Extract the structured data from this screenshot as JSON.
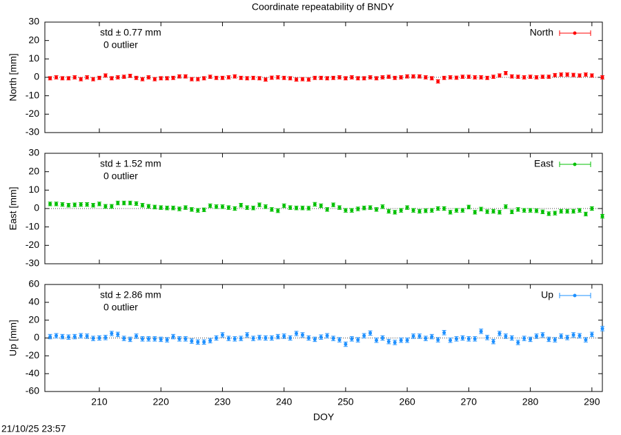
{
  "title": "Coordinate repeatability of BNDY",
  "timestamp": "21/10/25 23:57",
  "chart_data": [
    {
      "type": "errorbar",
      "ylabel": "North [mm]",
      "annotations": [
        "std ± 0.77 mm",
        "0 outlier"
      ],
      "legend": "top-right",
      "xlim": [
        201.15,
        291.7
      ],
      "ylim": [
        -30,
        30
      ],
      "yticks": [
        -30,
        -20,
        -10,
        0,
        10,
        20,
        30
      ],
      "x": [
        202,
        203,
        204,
        205,
        206,
        207,
        208,
        209,
        210,
        211,
        212,
        213,
        214,
        215,
        216,
        217,
        218,
        219,
        220,
        221,
        222,
        223,
        224,
        225,
        226,
        227,
        228,
        229,
        230,
        231,
        232,
        233,
        234,
        235,
        236,
        237,
        238,
        239,
        240,
        241,
        242,
        243,
        244,
        245,
        246,
        247,
        248,
        249,
        250,
        251,
        252,
        253,
        254,
        255,
        256,
        257,
        258,
        259,
        260,
        261,
        262,
        263,
        264,
        265,
        266,
        267,
        268,
        269,
        270,
        271,
        272,
        273,
        274,
        275,
        276,
        277,
        278,
        279,
        280,
        281,
        282,
        283,
        284,
        285,
        286,
        287,
        288,
        289,
        290,
        291.7
      ],
      "series": [
        {
          "name": "North",
          "color": "#ff0000",
          "error": 0.9,
          "values": [
            -0.5,
            0,
            -0.5,
            -0.5,
            0,
            -1,
            0,
            -1,
            -0.3,
            1,
            -0.5,
            0,
            0.3,
            0.8,
            -0.3,
            -1,
            0,
            -1,
            -0.5,
            -0.5,
            -0.3,
            0.5,
            0.5,
            -1,
            -1,
            -0.5,
            0.3,
            -0.3,
            -0.3,
            0,
            0.5,
            -0.3,
            -0.5,
            -0.3,
            -0.5,
            -1.2,
            -0.2,
            0,
            -0.3,
            -0.5,
            -1.2,
            -1,
            -1.2,
            -0.3,
            -0.3,
            -0.5,
            -0.3,
            0,
            -0.5,
            0,
            -0.5,
            -0.5,
            0,
            -0.5,
            0,
            0.3,
            -0.3,
            0,
            0.5,
            0.5,
            0.5,
            0,
            -0.5,
            -2.2,
            -0.3,
            0,
            -0.2,
            0.3,
            0.3,
            0,
            0,
            -0.3,
            0.3,
            1,
            2.3,
            0.5,
            0.3,
            0,
            0.3,
            0,
            0.3,
            0.3,
            1.2,
            1.5,
            1.5,
            1.3,
            1,
            1.5,
            1,
            0
          ]
        }
      ]
    },
    {
      "type": "errorbar",
      "ylabel": "East [mm]",
      "annotations": [
        "std ± 1.52 mm",
        "0 outlier"
      ],
      "legend": "top-right",
      "xlim": [
        201.15,
        291.7
      ],
      "ylim": [
        -30,
        30
      ],
      "yticks": [
        -30,
        -20,
        -10,
        0,
        10,
        20,
        30
      ],
      "x": [
        202,
        203,
        204,
        205,
        206,
        207,
        208,
        209,
        210,
        211,
        212,
        213,
        214,
        215,
        216,
        217,
        218,
        219,
        220,
        221,
        222,
        223,
        224,
        225,
        226,
        227,
        228,
        229,
        230,
        231,
        232,
        233,
        234,
        235,
        236,
        237,
        238,
        239,
        240,
        241,
        242,
        243,
        244,
        245,
        246,
        247,
        248,
        249,
        250,
        251,
        252,
        253,
        254,
        255,
        256,
        257,
        258,
        259,
        260,
        261,
        262,
        263,
        264,
        265,
        266,
        267,
        268,
        269,
        270,
        271,
        272,
        273,
        274,
        275,
        276,
        277,
        278,
        279,
        280,
        281,
        282,
        283,
        284,
        285,
        286,
        287,
        288,
        289,
        290,
        291.7
      ],
      "series": [
        {
          "name": "East",
          "color": "#00c000",
          "error": 1.0,
          "values": [
            2.5,
            2.5,
            2.2,
            1.8,
            2,
            2.2,
            2.2,
            1.8,
            2.5,
            1.2,
            1.2,
            3,
            3,
            3,
            2.7,
            1.8,
            1.2,
            0.8,
            0.5,
            0.3,
            0.3,
            -0.2,
            0.5,
            -0.5,
            -1,
            -0.7,
            1.5,
            1,
            1,
            0.5,
            0,
            1.8,
            0.5,
            0.3,
            2,
            1,
            -0.5,
            -1.2,
            1.5,
            0.5,
            0.3,
            0.3,
            0.2,
            2.3,
            1.5,
            -0.5,
            2,
            0.5,
            -1,
            -1,
            -0.2,
            0.3,
            0.5,
            -0.5,
            1,
            -1.5,
            -2,
            -1,
            0.5,
            -1,
            -1.5,
            -1.2,
            -1,
            0,
            0,
            -2,
            -1,
            -1,
            0.8,
            -2,
            -0.3,
            -1.7,
            -1.5,
            -2,
            1,
            -1.8,
            -0.5,
            -1,
            -1,
            -1.2,
            -1.8,
            -2.8,
            -2.5,
            -1.5,
            -1.5,
            -1.5,
            -1,
            -3,
            0,
            -4.2
          ]
        }
      ]
    },
    {
      "type": "errorbar",
      "ylabel": "Up [mm]",
      "xlabel": "DOY",
      "annotations": [
        "std ± 2.86 mm",
        "0 outlier"
      ],
      "legend": "top-right",
      "xlim": [
        201.15,
        291.7
      ],
      "ylim": [
        -60,
        60
      ],
      "yticks": [
        -60,
        -40,
        -20,
        0,
        20,
        40,
        60
      ],
      "xticks": [
        210,
        220,
        230,
        240,
        250,
        260,
        270,
        280,
        290
      ],
      "x": [
        202,
        203,
        204,
        205,
        206,
        207,
        208,
        209,
        210,
        211,
        212,
        213,
        214,
        215,
        216,
        217,
        218,
        219,
        220,
        221,
        222,
        223,
        224,
        225,
        226,
        227,
        228,
        229,
        230,
        231,
        232,
        233,
        234,
        235,
        236,
        237,
        238,
        239,
        240,
        241,
        242,
        243,
        244,
        245,
        246,
        247,
        248,
        249,
        250,
        251,
        252,
        253,
        254,
        255,
        256,
        257,
        258,
        259,
        260,
        261,
        262,
        263,
        264,
        265,
        266,
        267,
        268,
        269,
        270,
        271,
        272,
        273,
        274,
        275,
        276,
        277,
        278,
        279,
        280,
        281,
        282,
        283,
        284,
        285,
        286,
        287,
        288,
        289,
        290,
        291.7
      ],
      "series": [
        {
          "name": "Up",
          "color": "#1e90ff",
          "error": 2.5,
          "values": [
            1.5,
            2.5,
            1.5,
            1,
            1.5,
            2.5,
            2,
            -0.5,
            0,
            0.5,
            5,
            4,
            -0.5,
            -1.5,
            2,
            -1,
            -1,
            -1,
            -1.5,
            -2,
            1.5,
            -1,
            -1,
            -3.5,
            -4.5,
            -4.5,
            -3,
            0,
            3.5,
            -0.5,
            -1,
            -0.5,
            3.5,
            -0.5,
            0.5,
            0,
            0,
            1.5,
            2,
            0,
            5,
            3.5,
            0,
            -1.5,
            1,
            2.5,
            -0.5,
            -2,
            -7,
            -1,
            -2,
            2.5,
            5.5,
            -2.5,
            0,
            -4,
            -5,
            -2.5,
            -2.5,
            2,
            2,
            -0.5,
            1.5,
            -2,
            6,
            -2.5,
            -1,
            0,
            -1,
            -1,
            7.5,
            0.5,
            -4,
            5,
            2,
            0,
            -5,
            -0.5,
            -1.5,
            2,
            3.5,
            -1.5,
            -2,
            2,
            0.5,
            3.5,
            2.5,
            -2,
            4,
            10.5
          ]
        }
      ]
    }
  ]
}
